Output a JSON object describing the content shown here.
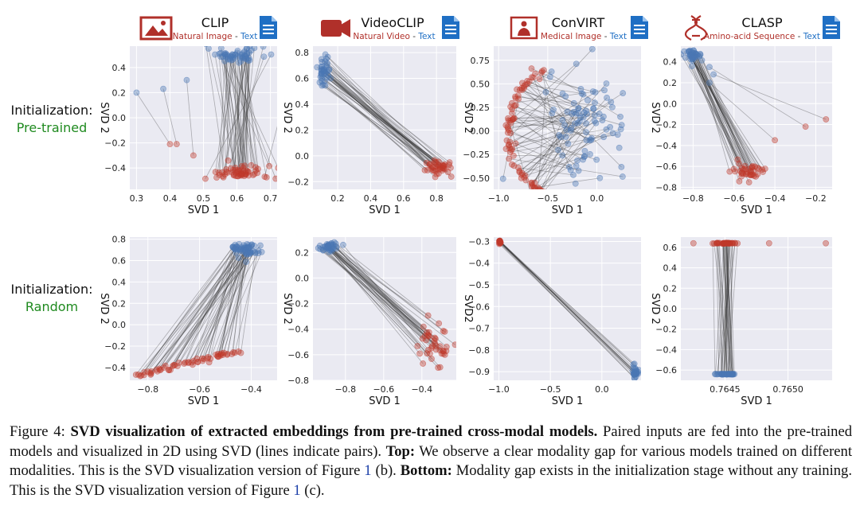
{
  "figure": {
    "models": [
      {
        "name": "CLIP",
        "modality1": "Natural Image",
        "sep": " - ",
        "modality2": "Text",
        "icon": "image-icon"
      },
      {
        "name": "VideoCLIP",
        "modality1": "Natural Video",
        "sep": " - ",
        "modality2": "Text",
        "icon": "video-camera-icon"
      },
      {
        "name": "ConVIRT",
        "modality1": "Medical Image",
        "sep": " - ",
        "modality2": "Text",
        "icon": "medical-image-icon"
      },
      {
        "name": "CLASP",
        "modality1": "Amino-acid Sequence",
        "sep": " - ",
        "modality2": "Text",
        "icon": "dna-icon"
      }
    ],
    "rows": [
      {
        "label": "Initialization:",
        "value": "Pre-trained"
      },
      {
        "label": "Initialization:",
        "value": "Random"
      }
    ],
    "colors": {
      "modality1": "#c0392b",
      "modality2": "#4a77b4",
      "pair_line": "#333333",
      "init_value": "#1f8a1f",
      "panel_bg": "#eaeaf2",
      "grid": "#ffffff",
      "doc_icon": "#1f6fc4"
    }
  },
  "chart_data": [
    {
      "type": "scatter",
      "panel": "CLIP / Pre-trained",
      "xlabel": "SVD 1",
      "ylabel": "SVD 2",
      "xlim": [
        0.28,
        0.72
      ],
      "ylim": [
        -0.57,
        0.57
      ],
      "xticks": [
        "0.3",
        "0.4",
        "0.5",
        "0.6",
        "0.7"
      ],
      "yticks": [
        "0.4",
        "0.2",
        "0.0",
        "−0.2",
        "−0.4"
      ],
      "grid": true,
      "clusters": [
        {
          "modality": "text",
          "color": "#4a77b4",
          "xc": 0.6,
          "yc": 0.5,
          "sx": 0.045,
          "sy": 0.03,
          "n": 60,
          "outliers": [
            [
              0.3,
              0.2
            ],
            [
              0.38,
              0.23
            ],
            [
              0.45,
              0.3
            ]
          ]
        },
        {
          "modality": "image",
          "color": "#c0392b",
          "xc": 0.6,
          "yc": -0.44,
          "sx": 0.05,
          "sy": 0.03,
          "n": 60,
          "outliers": [
            [
              0.4,
              -0.21
            ],
            [
              0.42,
              -0.21
            ],
            [
              0.47,
              -0.3
            ]
          ]
        }
      ]
    },
    {
      "type": "scatter",
      "panel": "VideoCLIP / Pre-trained",
      "xlabel": "SVD 1",
      "ylabel": "SVD 2",
      "xlim": [
        0.05,
        0.92
      ],
      "ylim": [
        -0.26,
        0.85
      ],
      "xticks": [
        "0.2",
        "0.4",
        "0.6",
        "0.8"
      ],
      "yticks": [
        "0.8",
        "0.6",
        "0.4",
        "0.2",
        "0.0",
        "−0.2"
      ],
      "grid": true,
      "clusters": [
        {
          "modality": "text",
          "color": "#4a77b4",
          "xc": 0.12,
          "yc": 0.66,
          "sx": 0.02,
          "sy": 0.07,
          "n": 40,
          "outliers": []
        },
        {
          "modality": "video",
          "color": "#c0392b",
          "xc": 0.82,
          "yc": -0.09,
          "sx": 0.04,
          "sy": 0.03,
          "n": 40,
          "outliers": []
        }
      ]
    },
    {
      "type": "scatter",
      "panel": "ConVIRT / Pre-trained",
      "xlabel": "SVD 1",
      "ylabel": "SVD 2",
      "xlim": [
        -1.05,
        0.45
      ],
      "ylim": [
        -0.62,
        0.9
      ],
      "xticks": [
        "−1.0",
        "−0.5",
        "0.0"
      ],
      "yticks": [
        "0.75",
        "0.50",
        "0.25",
        "0.00",
        "−0.25",
        "−0.50"
      ],
      "grid": true,
      "clusters": [
        {
          "modality": "text",
          "color": "#4a77b4",
          "xc": -0.1,
          "yc": 0.1,
          "sx": 0.2,
          "sy": 0.25,
          "n": 90,
          "outliers": []
        },
        {
          "modality": "medical image",
          "color": "#c0392b",
          "shape": "arc",
          "cx": -0.35,
          "cy": 0.0,
          "r": 0.55,
          "a0": 110,
          "a1": 250,
          "n": 80,
          "outliers": []
        }
      ]
    },
    {
      "type": "scatter",
      "panel": "CLASP / Pre-trained",
      "xlabel": "SVD 1",
      "ylabel": "SVD 2",
      "xlim": [
        -0.86,
        -0.12
      ],
      "ylim": [
        -0.82,
        0.55
      ],
      "xticks": [
        "−0.8",
        "−0.6",
        "−0.4",
        "−0.2"
      ],
      "yticks": [
        "0.4",
        "0.2",
        "0.0",
        "−0.2",
        "−0.4",
        "−0.6",
        "−0.8"
      ],
      "grid": true,
      "clusters": [
        {
          "modality": "text",
          "color": "#4a77b4",
          "xc": -0.8,
          "yc": 0.46,
          "sx": 0.025,
          "sy": 0.025,
          "n": 40,
          "outliers": [
            [
              -0.72,
              0.35
            ],
            [
              -0.7,
              0.28
            ],
            [
              -0.72,
              0.2
            ]
          ]
        },
        {
          "modality": "amino-acid",
          "color": "#c0392b",
          "xc": -0.53,
          "yc": -0.65,
          "sx": 0.04,
          "sy": 0.05,
          "n": 40,
          "outliers": [
            [
              -0.25,
              -0.22
            ],
            [
              -0.15,
              -0.15
            ],
            [
              -0.4,
              -0.35
            ]
          ]
        }
      ]
    },
    {
      "type": "scatter",
      "panel": "CLIP / Random",
      "xlabel": "SVD 1",
      "ylabel": "SVD 2",
      "xlim": [
        -0.87,
        -0.3
      ],
      "ylim": [
        -0.52,
        0.82
      ],
      "xticks": [
        "−0.8",
        "−0.6",
        "−0.4"
      ],
      "yticks": [
        "0.8",
        "0.6",
        "0.4",
        "0.2",
        "0.0",
        "−0.2",
        "−0.4"
      ],
      "grid": true,
      "clusters": [
        {
          "modality": "text",
          "color": "#4a77b4",
          "xc": -0.42,
          "yc": 0.7,
          "sx": 0.03,
          "sy": 0.035,
          "n": 60,
          "outliers": []
        },
        {
          "modality": "image",
          "color": "#c0392b",
          "shape": "line",
          "x0": -0.85,
          "y0": -0.48,
          "x1": -0.45,
          "y1": -0.25,
          "n": 60,
          "outliers": []
        }
      ]
    },
    {
      "type": "scatter",
      "panel": "VideoCLIP / Random",
      "xlabel": "SVD 1",
      "ylabel": "SVD 2",
      "xlim": [
        -0.97,
        -0.22
      ],
      "ylim": [
        -0.8,
        0.32
      ],
      "xticks": [
        "−0.8",
        "−0.6",
        "−0.4"
      ],
      "yticks": [
        "0.2",
        "0.0",
        "−0.2",
        "−0.4",
        "−0.6",
        "−0.8"
      ],
      "grid": true,
      "clusters": [
        {
          "modality": "text",
          "color": "#4a77b4",
          "xc": -0.88,
          "yc": 0.24,
          "sx": 0.025,
          "sy": 0.02,
          "n": 40,
          "outliers": []
        },
        {
          "modality": "video",
          "color": "#c0392b",
          "xc": -0.33,
          "yc": -0.52,
          "sx": 0.04,
          "sy": 0.08,
          "n": 40,
          "outliers": []
        }
      ]
    },
    {
      "type": "scatter",
      "panel": "ConVIRT / Random",
      "xlabel": "SVD 1",
      "ylabel": "SVD2",
      "xlim": [
        -1.05,
        0.38
      ],
      "ylim": [
        -0.94,
        -0.28
      ],
      "xticks": [
        "−1.0",
        "−0.5",
        "0.0"
      ],
      "yticks": [
        "−0.3",
        "−0.4",
        "−0.5",
        "−0.6",
        "−0.7",
        "−0.8",
        "−0.9"
      ],
      "grid": true,
      "clusters": [
        {
          "modality": "medical image",
          "color": "#c0392b",
          "xc": -0.99,
          "yc": -0.3,
          "sx": 0.005,
          "sy": 0.005,
          "n": 15,
          "outliers": []
        },
        {
          "modality": "text",
          "color": "#4a77b4",
          "xc": 0.32,
          "yc": -0.9,
          "sx": 0.015,
          "sy": 0.015,
          "n": 30,
          "outliers": []
        }
      ]
    },
    {
      "type": "scatter",
      "panel": "CLASP / Random",
      "xlabel": "SVD 1",
      "ylabel": "SVD 2",
      "xlim": [
        0.76415,
        0.76535
      ],
      "ylim": [
        -0.7,
        0.7
      ],
      "xticks": [
        "0.7645",
        "0.7650"
      ],
      "yticks": [
        "0.6",
        "0.4",
        "0.2",
        "0.0",
        "−0.2",
        "−0.4",
        "−0.6"
      ],
      "grid": true,
      "clusters": [
        {
          "modality": "amino-acid",
          "color": "#c0392b",
          "xc": 0.7645,
          "yc": 0.64,
          "sx": 4e-05,
          "sy": 0.002,
          "n": 40,
          "outliers": [
            [
              0.76425,
              0.64
            ],
            [
              0.76485,
              0.64
            ],
            [
              0.7653,
              0.64
            ]
          ]
        },
        {
          "modality": "text",
          "color": "#4a77b4",
          "xc": 0.7645,
          "yc": -0.64,
          "sx": 4e-05,
          "sy": 0.002,
          "n": 40,
          "outliers": []
        }
      ]
    }
  ],
  "caption": {
    "prefix": "Figure 4: ",
    "bold1": "SVD visualization of extracted embeddings from pre-trained cross-modal models.",
    "text1": " Paired inputs are fed into the pre-trained models and visualized in 2D using SVD (lines indicate pairs). ",
    "bold2": "Top:",
    "text2": " We observe a clear modality gap for various models trained on different modalities. This is the SVD visualization version of Figure ",
    "ref1": "1",
    "text3": " (b). ",
    "bold3": "Bottom:",
    "text4": " Modality gap exists in the initialization stage without any training. This is the SVD visualization version of Figure ",
    "ref2": "1",
    "text5": " (c)."
  }
}
